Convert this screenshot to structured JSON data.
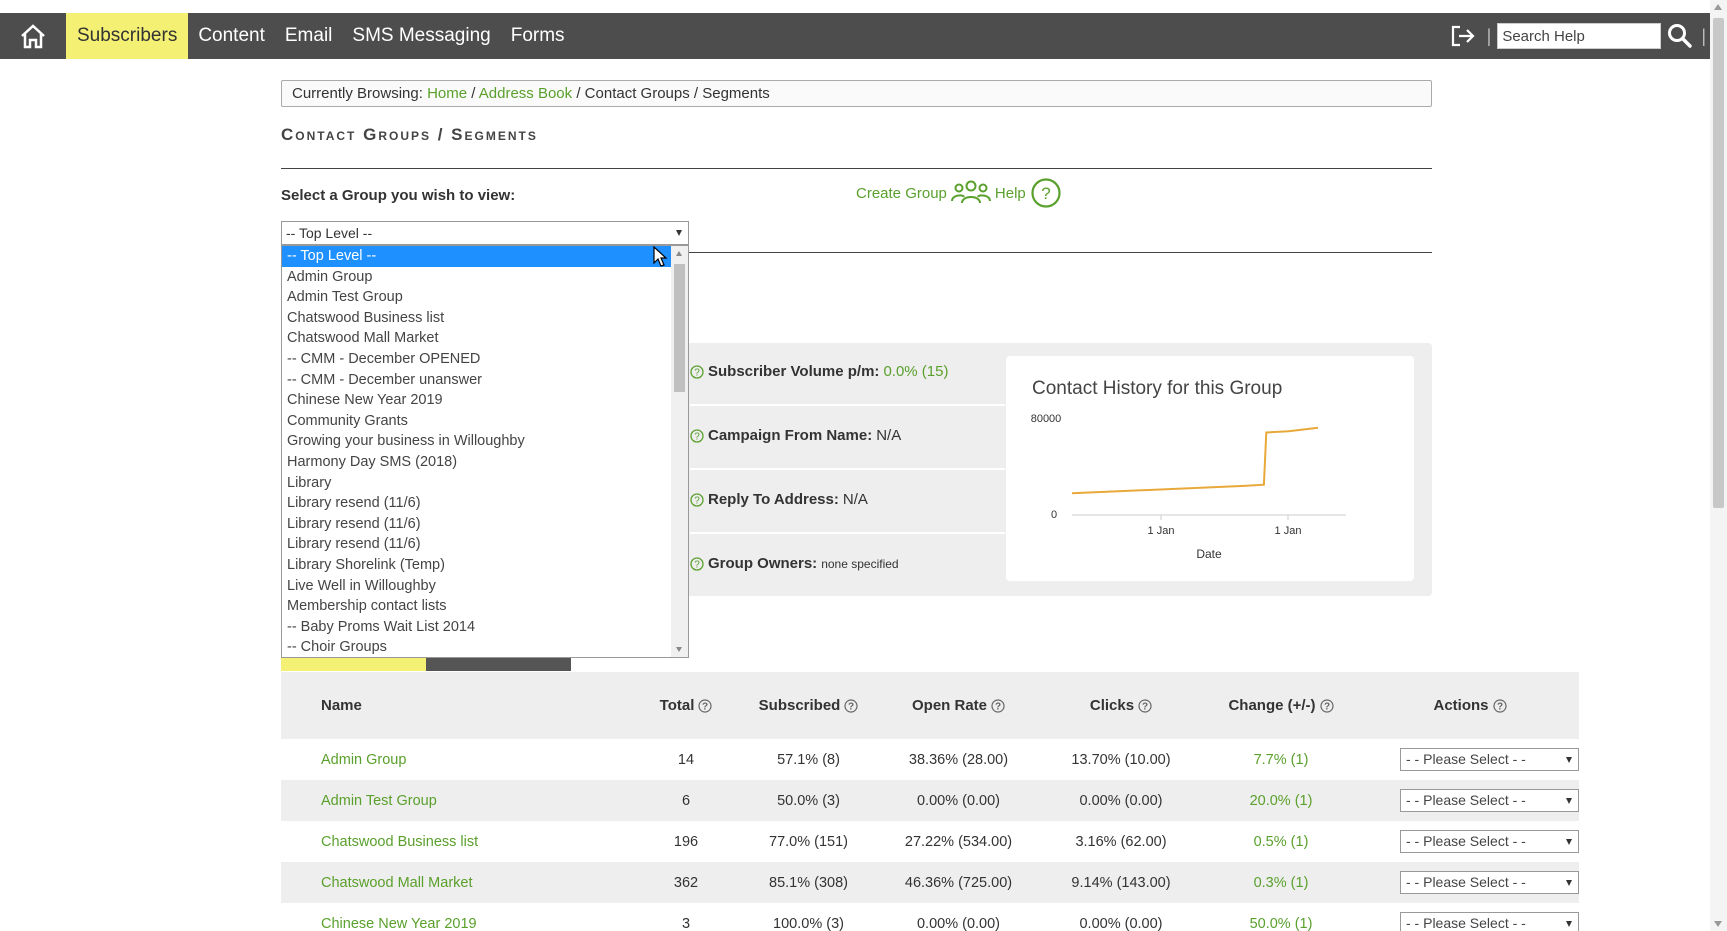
{
  "nav": {
    "items": [
      {
        "label": "Subscribers",
        "active": true
      },
      {
        "label": "Content",
        "active": false
      },
      {
        "label": "Email",
        "active": false
      },
      {
        "label": "SMS Messaging",
        "active": false
      },
      {
        "label": "Forms",
        "active": false
      }
    ],
    "search_placeholder": "Search Help",
    "separator": "|"
  },
  "breadcrumb": {
    "prefix": "Currently Browsing:",
    "home": "Home",
    "sep": "/",
    "address_book": "Address Book",
    "current": "Contact Groups / Segments"
  },
  "page_title": "Contact Groups / Segments",
  "group_select": {
    "label": "Select a Group you wish to view:",
    "value": "-- Top Level --",
    "options": [
      "-- Top Level --",
      "Admin Group",
      "Admin Test Group",
      "Chatswood Business list",
      "Chatswood Mall Market",
      "-- CMM - December OPENED",
      "-- CMM - December unanswer",
      "Chinese New Year 2019",
      "Community Grants",
      "Growing your business in Willoughby",
      "Harmony Day SMS (2018)",
      "Library",
      "Library resend (11/6)",
      "Library resend (11/6)",
      "Library resend (11/6)",
      "Library Shorelink (Temp)",
      "Live Well in Willoughby",
      "Membership contact lists",
      "-- Baby Proms Wait List 2014",
      "-- Choir Groups"
    ]
  },
  "links": {
    "create_group": "Create Group",
    "help": "Help"
  },
  "info": {
    "subscriber_volume_label": "Subscriber Volume p/m:",
    "subscriber_volume_value": "0.0% (15)",
    "campaign_from_label": "Campaign From Name:",
    "campaign_from_value": "N/A",
    "reply_to_label": "Reply To Address:",
    "reply_to_value": "N/A",
    "group_owners_label": "Group Owners:",
    "group_owners_value": "none specified"
  },
  "chart_data": {
    "type": "line",
    "title": "Contact History for this Group",
    "xlabel": "Date",
    "ylabel": "",
    "x_ticks": [
      "1 Jan",
      "1 Jan"
    ],
    "y_ticks": [
      0,
      80000
    ],
    "ylim": [
      0,
      80000
    ],
    "series": [
      {
        "color": "#e8a93a",
        "points": [
          [
            0,
            18000
          ],
          [
            0.7,
            24000
          ],
          [
            0.78,
            25000
          ],
          [
            0.79,
            68000
          ],
          [
            0.88,
            69000
          ],
          [
            1.0,
            72000
          ]
        ]
      }
    ],
    "grid": false
  },
  "table": {
    "headers": {
      "name": "Name",
      "total": "Total",
      "subscribed": "Subscribed",
      "open_rate": "Open Rate",
      "clicks": "Clicks",
      "change": "Change (+/-)",
      "actions": "Actions"
    },
    "rows": [
      {
        "name": "Admin Group",
        "total": "14",
        "subscribed": "57.1% (8)",
        "open_rate": "38.36% (28.00)",
        "clicks": "13.70% (10.00)",
        "change": "7.7% (1)",
        "action": "- - Please Select - -"
      },
      {
        "name": "Admin Test Group",
        "total": "6",
        "subscribed": "50.0% (3)",
        "open_rate": "0.00% (0.00)",
        "clicks": "0.00% (0.00)",
        "change": "20.0% (1)",
        "action": "- - Please Select - -"
      },
      {
        "name": "Chatswood Business list",
        "total": "196",
        "subscribed": "77.0% (151)",
        "open_rate": "27.22% (534.00)",
        "clicks": "3.16% (62.00)",
        "change": "0.5% (1)",
        "action": "- - Please Select - -"
      },
      {
        "name": "Chatswood Mall Market",
        "total": "362",
        "subscribed": "85.1% (308)",
        "open_rate": "46.36% (725.00)",
        "clicks": "9.14% (143.00)",
        "change": "0.3% (1)",
        "action": "- - Please Select - -"
      },
      {
        "name": "Chinese New Year 2019",
        "total": "3",
        "subscribed": "100.0% (3)",
        "open_rate": "0.00% (0.00)",
        "clicks": "0.00% (0.00)",
        "change": "50.0% (1)",
        "action": "- - Please Select - -"
      }
    ]
  },
  "colors": {
    "accent_yellow": "#f3f074",
    "link_green": "#5aa02c",
    "nav_bg": "#4d4d4d",
    "selected_blue": "#1e90ff",
    "chart_line": "#e8a93a"
  }
}
